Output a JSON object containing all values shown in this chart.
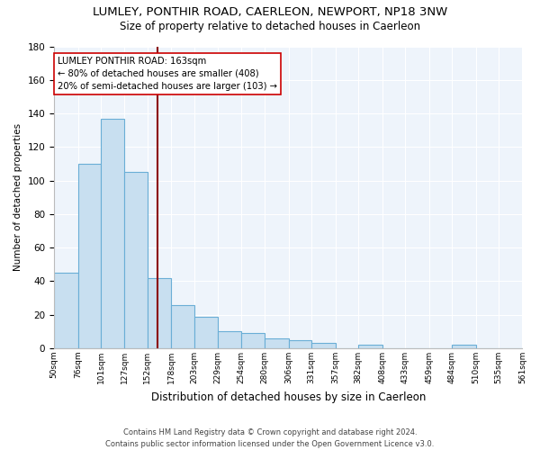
{
  "title": "LUMLEY, PONTHIR ROAD, CAERLEON, NEWPORT, NP18 3NW",
  "subtitle": "Size of property relative to detached houses in Caerleon",
  "xlabel": "Distribution of detached houses by size in Caerleon",
  "ylabel": "Number of detached properties",
  "bar_values": [
    45,
    110,
    137,
    105,
    42,
    26,
    19,
    10,
    9,
    6,
    5,
    3,
    0,
    2,
    0,
    0,
    0,
    2,
    0,
    0
  ],
  "all_labels": [
    "50sqm",
    "76sqm",
    "101sqm",
    "127sqm",
    "152sqm",
    "178sqm",
    "203sqm",
    "229sqm",
    "254sqm",
    "280sqm",
    "306sqm",
    "331sqm",
    "357sqm",
    "382sqm",
    "408sqm",
    "433sqm",
    "459sqm",
    "484sqm",
    "510sqm",
    "535sqm",
    "561sqm"
  ],
  "bin_edges": [
    50,
    76,
    101,
    127,
    152,
    178,
    203,
    229,
    254,
    280,
    306,
    331,
    357,
    382,
    408,
    433,
    459,
    484,
    510,
    535,
    561
  ],
  "bar_color": "#c8dff0",
  "bar_edge_color": "#6aaed6",
  "vline_x": 163,
  "vline_color": "#8b0000",
  "annotation_title": "LUMLEY PONTHIR ROAD: 163sqm",
  "annotation_line1": "← 80% of detached houses are smaller (408)",
  "annotation_line2": "20% of semi-detached houses are larger (103) →",
  "ylim": [
    0,
    180
  ],
  "yticks": [
    0,
    20,
    40,
    60,
    80,
    100,
    120,
    140,
    160,
    180
  ],
  "footer_line1": "Contains HM Land Registry data © Crown copyright and database right 2024.",
  "footer_line2": "Contains public sector information licensed under the Open Government Licence v3.0.",
  "background_color": "#ffffff",
  "plot_bg_color": "#eef4fb",
  "grid_color": "#ffffff"
}
